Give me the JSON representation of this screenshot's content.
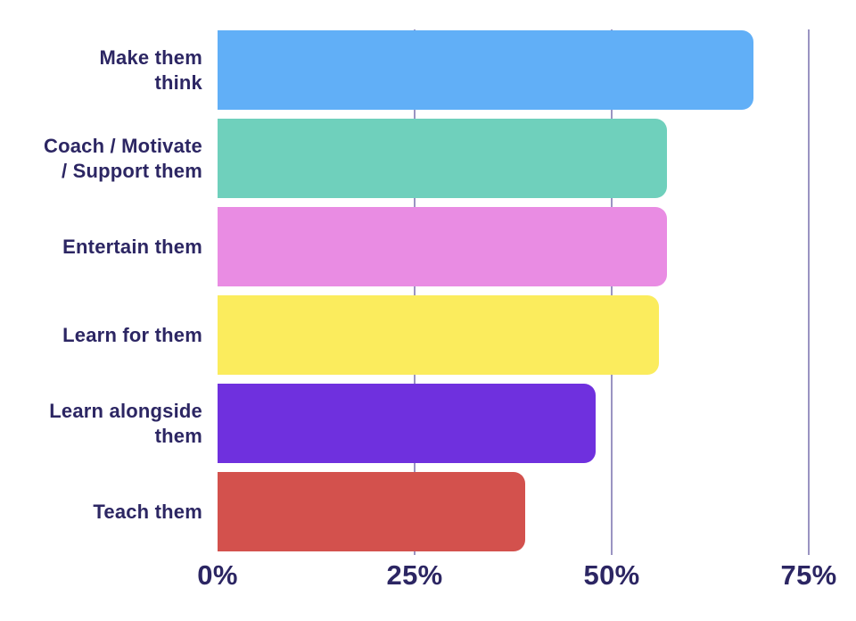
{
  "chart_data": {
    "type": "bar",
    "orientation": "horizontal",
    "title": "",
    "xlabel": "",
    "ylabel": "",
    "categories": [
      "Make them\nthink",
      "Coach / Motivate\n/ Support them",
      "Entertain them",
      "Learn for them",
      "Learn alongside\nthem",
      "Teach them"
    ],
    "values": [
      68,
      57,
      57,
      56,
      48,
      39
    ],
    "unit": "%",
    "bar_colors": [
      "#61AFF7",
      "#6FD0BC",
      "#E98CE3",
      "#FBEC5D",
      "#6F30DE",
      "#D3514D"
    ],
    "x_axis": {
      "ticks": [
        0,
        25,
        50,
        75
      ],
      "tick_labels": [
        "0%",
        "25%",
        "50%",
        "75%"
      ],
      "range": [
        0,
        81
      ],
      "grid": true
    },
    "legend": null,
    "colors": {
      "label_text": "#2C2663",
      "tick_text": "#2C2663",
      "gridline": "#9A94C2",
      "background": "#FFFFFF"
    }
  }
}
